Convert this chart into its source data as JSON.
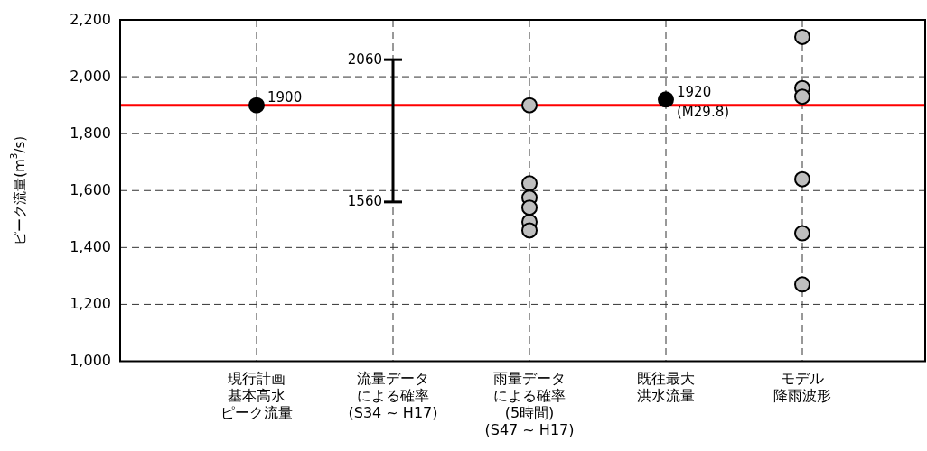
{
  "chart_data": {
    "type": "scatter",
    "ylabel": "ピーク流量(m$^{3}$/s)",
    "categories": [
      "現行計画基本高水ピーク流量",
      "流量データによる確率(S34 ~ H17)",
      "雨量データによる確率(5時間)(S47 ~ H17)",
      "既往最大洪水流量",
      "モデル降雨波形"
    ],
    "series": [
      {
        "type": "bar",
        "color": "#000000",
        "values": [
          null,
          500,
          null,
          null,
          null
        ],
        "base": [
          null,
          1560,
          null,
          null,
          null
        ]
      },
      {
        "marker": "circle",
        "color": "#bfbfbf",
        "x": [
          "雨量データによる確率(5時間)(S47 ~ H17)",
          "雨量データによる確率(5時間)(S47 ~ H17)",
          "雨量データによる確率(5時間)(S47 ~ H17)",
          "雨量データによる確率(5時間)(S47 ~ H17)",
          "雨量データによる確率(5時間)(S47 ~ H17)",
          "雨量データによる確率(5時間)(S47 ~ H17)",
          "モデル降雨波形",
          "モデル降雨波形",
          "モデル降雨波形",
          "モデル降雨波形",
          "モデル降雨波形",
          "モデル降雨波形"
        ],
        "values": [
          1900,
          1625,
          1575,
          1540,
          1490,
          1460,
          2140,
          1960,
          1930,
          1640,
          1450,
          1270
        ]
      },
      {
        "marker": "circle",
        "color": "#000000",
        "x": [
          "現行計画基本高水ピーク流量",
          "既往最大洪水流量"
        ],
        "values": [
          1900,
          1920
        ]
      }
    ],
    "ylim": [
      1000,
      2200
    ],
    "yticks": [
      {
        "value": 1000,
        "label": "1,000"
      },
      {
        "value": 1200,
        "label": "1,200"
      },
      {
        "value": 1400,
        "label": "1,400"
      },
      {
        "value": 1600,
        "label": "1,600"
      },
      {
        "value": 1800,
        "label": "1,800"
      },
      {
        "value": 2000,
        "label": "2,000"
      },
      {
        "value": 2200,
        "label": "2,200"
      }
    ],
    "grid": true,
    "ref_lines": [
      {
        "axis": "y",
        "value": 1900,
        "color": "#ff0000"
      }
    ],
    "annotations": [
      {
        "text": "1900",
        "x": "現行計画基本高水ピーク流量",
        "y": 1900
      },
      {
        "text": "2060",
        "x": "流量データによる確率(S34 ~ H17)",
        "y": 2060
      },
      {
        "text": "1560",
        "x": "流量データによる確率(S34 ~ H17)",
        "y": 1560
      },
      {
        "text": "1920",
        "x": "既往最大洪水流量",
        "y": 1920
      },
      {
        "text": "(M29.8)",
        "x": "既往最大洪水流量",
        "y": 1920
      }
    ]
  }
}
